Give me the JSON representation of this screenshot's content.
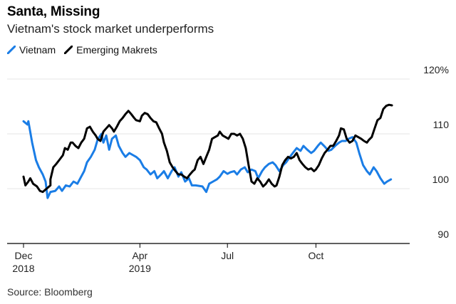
{
  "chart_data": {
    "type": "line",
    "title": "Santa, Missing",
    "subtitle": "Vietnam's stock market underperforms",
    "source": "Source: Bloomberg",
    "xlabel": "",
    "ylabel": "",
    "x_unit": "days since 2018-12-01",
    "ylim": [
      90,
      120
    ],
    "y_ticks": [
      {
        "value": 120,
        "label": "120%"
      },
      {
        "value": 110,
        "label": "110"
      },
      {
        "value": 100,
        "label": "100"
      },
      {
        "value": 90,
        "label": "90"
      }
    ],
    "x_ticks": [
      {
        "day": 0,
        "line1": "Dec",
        "line2": "2018"
      },
      {
        "day": 121,
        "line1": "Apr",
        "line2": "2019"
      },
      {
        "day": 212,
        "line1": "Jul",
        "line2": ""
      },
      {
        "day": 304,
        "line1": "Oct",
        "line2": ""
      }
    ],
    "xlim": [
      -17,
      394
    ],
    "grid": true,
    "legend_position": "top-left",
    "series": [
      {
        "name": "Vietnam",
        "color": "#1a7de6",
        "points": [
          [
            0,
            112.3
          ],
          [
            4,
            111.7
          ],
          [
            5,
            112.3
          ],
          [
            9,
            108.4
          ],
          [
            13,
            105.2
          ],
          [
            16,
            103.9
          ],
          [
            20,
            102.6
          ],
          [
            23,
            101.3
          ],
          [
            25,
            98.3
          ],
          [
            28,
            99.4
          ],
          [
            33,
            99.6
          ],
          [
            37,
            100.4
          ],
          [
            40,
            99.6
          ],
          [
            44,
            100.6
          ],
          [
            48,
            100.4
          ],
          [
            52,
            101.3
          ],
          [
            56,
            100.9
          ],
          [
            59,
            101.9
          ],
          [
            63,
            103.2
          ],
          [
            66,
            104.8
          ],
          [
            70,
            105.8
          ],
          [
            74,
            107.1
          ],
          [
            77,
            108.9
          ],
          [
            81,
            110.0
          ],
          [
            83,
            108.4
          ],
          [
            86,
            109.7
          ],
          [
            89,
            107.1
          ],
          [
            92,
            109.1
          ],
          [
            96,
            109.7
          ],
          [
            99,
            107.8
          ],
          [
            103,
            106.5
          ],
          [
            106,
            105.8
          ],
          [
            110,
            106.5
          ],
          [
            114,
            106.1
          ],
          [
            117,
            105.8
          ],
          [
            121,
            105.2
          ],
          [
            125,
            103.9
          ],
          [
            128,
            103.5
          ],
          [
            132,
            102.6
          ],
          [
            136,
            103.2
          ],
          [
            139,
            101.9
          ],
          [
            143,
            102.6
          ],
          [
            146,
            103.2
          ],
          [
            150,
            101.9
          ],
          [
            154,
            103.2
          ],
          [
            157,
            103.9
          ],
          [
            161,
            102.2
          ],
          [
            164,
            103.0
          ],
          [
            168,
            101.3
          ],
          [
            172,
            101.9
          ],
          [
            175,
            100.6
          ],
          [
            179,
            100.6
          ],
          [
            186,
            100.4
          ],
          [
            190,
            99.4
          ],
          [
            193,
            100.9
          ],
          [
            197,
            101.3
          ],
          [
            201,
            101.7
          ],
          [
            204,
            102.2
          ],
          [
            208,
            103.2
          ],
          [
            212,
            102.7
          ],
          [
            215,
            103.0
          ],
          [
            219,
            103.2
          ],
          [
            222,
            102.6
          ],
          [
            226,
            103.5
          ],
          [
            230,
            103.9
          ],
          [
            233,
            103.0
          ],
          [
            237,
            103.5
          ],
          [
            241,
            103.2
          ],
          [
            244,
            101.9
          ],
          [
            248,
            103.2
          ],
          [
            251,
            103.9
          ],
          [
            255,
            104.5
          ],
          [
            259,
            104.8
          ],
          [
            262,
            104.3
          ],
          [
            266,
            103.2
          ],
          [
            270,
            104.3
          ],
          [
            273,
            104.8
          ],
          [
            277,
            105.8
          ],
          [
            280,
            106.5
          ],
          [
            284,
            107.4
          ],
          [
            288,
            106.9
          ],
          [
            291,
            107.8
          ],
          [
            295,
            107.1
          ],
          [
            299,
            106.5
          ],
          [
            302,
            106.9
          ],
          [
            306,
            107.8
          ],
          [
            309,
            108.4
          ],
          [
            313,
            107.7
          ],
          [
            317,
            106.9
          ],
          [
            320,
            107.1
          ],
          [
            324,
            107.8
          ],
          [
            328,
            108.4
          ],
          [
            331,
            108.7
          ],
          [
            335,
            108.7
          ],
          [
            338,
            109.1
          ],
          [
            342,
            109.4
          ],
          [
            346,
            108.4
          ],
          [
            349,
            106.5
          ],
          [
            353,
            104.3
          ],
          [
            357,
            103.2
          ],
          [
            360,
            102.6
          ],
          [
            364,
            103.9
          ],
          [
            367,
            103.2
          ],
          [
            371,
            101.9
          ],
          [
            375,
            100.9
          ],
          [
            378,
            101.3
          ],
          [
            382,
            101.7
          ]
        ]
      },
      {
        "name": "Emerging Makrets",
        "color": "#000000",
        "points": [
          [
            0,
            102.2
          ],
          [
            2,
            100.6
          ],
          [
            5,
            101.3
          ],
          [
            7,
            101.9
          ],
          [
            10,
            100.9
          ],
          [
            14,
            100.4
          ],
          [
            17,
            99.6
          ],
          [
            20,
            99.4
          ],
          [
            28,
            100.6
          ],
          [
            28,
            101.7
          ],
          [
            31,
            103.9
          ],
          [
            34,
            104.5
          ],
          [
            37,
            105.2
          ],
          [
            41,
            106.1
          ],
          [
            43,
            107.4
          ],
          [
            46,
            107.1
          ],
          [
            49,
            108.4
          ],
          [
            51,
            108.4
          ],
          [
            54,
            107.8
          ],
          [
            57,
            107.4
          ],
          [
            60,
            108.4
          ],
          [
            63,
            109.1
          ],
          [
            66,
            111.0
          ],
          [
            69,
            111.3
          ],
          [
            72,
            110.4
          ],
          [
            75,
            109.7
          ],
          [
            77,
            109.1
          ],
          [
            80,
            108.7
          ],
          [
            83,
            110.4
          ],
          [
            86,
            111.0
          ],
          [
            89,
            111.6
          ],
          [
            92,
            111.0
          ],
          [
            94,
            110.4
          ],
          [
            97,
            111.3
          ],
          [
            100,
            112.3
          ],
          [
            103,
            112.9
          ],
          [
            106,
            113.6
          ],
          [
            109,
            114.2
          ],
          [
            112,
            113.6
          ],
          [
            115,
            112.9
          ],
          [
            117,
            112.5
          ],
          [
            121,
            112.3
          ],
          [
            123,
            113.3
          ],
          [
            126,
            113.8
          ],
          [
            129,
            113.6
          ],
          [
            132,
            112.9
          ],
          [
            135,
            112.3
          ],
          [
            138,
            112.1
          ],
          [
            141,
            111.0
          ],
          [
            144,
            110.0
          ],
          [
            146,
            108.4
          ],
          [
            149,
            106.9
          ],
          [
            152,
            104.8
          ],
          [
            155,
            103.9
          ],
          [
            158,
            103.2
          ],
          [
            161,
            102.6
          ],
          [
            164,
            102.6
          ],
          [
            167,
            102.2
          ],
          [
            170,
            101.9
          ],
          [
            173,
            102.6
          ],
          [
            176,
            103.2
          ],
          [
            178,
            103.5
          ],
          [
            181,
            105.2
          ],
          [
            184,
            105.8
          ],
          [
            187,
            104.5
          ],
          [
            190,
            105.8
          ],
          [
            193,
            107.1
          ],
          [
            196,
            109.1
          ],
          [
            199,
            109.4
          ],
          [
            202,
            109.7
          ],
          [
            204,
            110.4
          ],
          [
            207,
            109.7
          ],
          [
            210,
            109.4
          ],
          [
            213,
            109.1
          ],
          [
            216,
            110.0
          ],
          [
            219,
            110.0
          ],
          [
            222,
            109.7
          ],
          [
            225,
            110.0
          ],
          [
            228,
            109.1
          ],
          [
            231,
            107.4
          ],
          [
            234,
            104.3
          ],
          [
            237,
            101.3
          ],
          [
            240,
            100.9
          ],
          [
            243,
            101.9
          ],
          [
            246,
            101.3
          ],
          [
            249,
            100.4
          ],
          [
            252,
            100.9
          ],
          [
            255,
            101.7
          ],
          [
            258,
            100.9
          ],
          [
            261,
            100.4
          ],
          [
            263,
            100.6
          ],
          [
            266,
            102.2
          ],
          [
            269,
            104.3
          ],
          [
            272,
            105.2
          ],
          [
            275,
            105.8
          ],
          [
            278,
            105.5
          ],
          [
            281,
            105.8
          ],
          [
            284,
            106.5
          ],
          [
            287,
            105.2
          ],
          [
            290,
            104.5
          ],
          [
            293,
            103.9
          ],
          [
            296,
            103.5
          ],
          [
            299,
            103.7
          ],
          [
            302,
            103.2
          ],
          [
            304,
            103.5
          ],
          [
            307,
            104.3
          ],
          [
            310,
            105.5
          ],
          [
            313,
            106.5
          ],
          [
            316,
            107.1
          ],
          [
            319,
            107.8
          ],
          [
            322,
            107.8
          ],
          [
            325,
            108.7
          ],
          [
            328,
            109.7
          ],
          [
            330,
            111.0
          ],
          [
            333,
            110.8
          ],
          [
            336,
            109.1
          ],
          [
            339,
            108.4
          ],
          [
            342,
            108.7
          ],
          [
            345,
            109.7
          ],
          [
            348,
            109.4
          ],
          [
            351,
            109.1
          ],
          [
            354,
            108.7
          ],
          [
            357,
            108.4
          ],
          [
            359,
            108.9
          ],
          [
            362,
            109.4
          ],
          [
            365,
            111.0
          ],
          [
            368,
            112.5
          ],
          [
            371,
            112.9
          ],
          [
            374,
            114.5
          ],
          [
            377,
            115.1
          ],
          [
            380,
            115.3
          ],
          [
            383,
            115.2
          ]
        ]
      }
    ]
  }
}
